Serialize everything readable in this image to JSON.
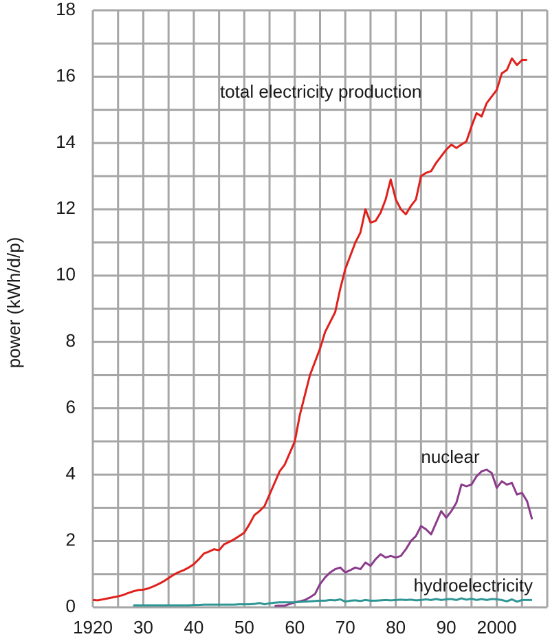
{
  "chart_data": {
    "type": "line",
    "y_label": "power (kWh/d/p)",
    "x": [
      1920,
      1921,
      1922,
      1923,
      1924,
      1925,
      1926,
      1927,
      1928,
      1929,
      1930,
      1931,
      1932,
      1933,
      1934,
      1935,
      1936,
      1937,
      1938,
      1939,
      1940,
      1941,
      1942,
      1943,
      1944,
      1945,
      1946,
      1947,
      1948,
      1949,
      1950,
      1951,
      1952,
      1953,
      1954,
      1955,
      1956,
      1957,
      1958,
      1959,
      1960,
      1961,
      1962,
      1963,
      1964,
      1965,
      1966,
      1967,
      1968,
      1969,
      1970,
      1971,
      1972,
      1973,
      1974,
      1975,
      1976,
      1977,
      1978,
      1979,
      1980,
      1981,
      1982,
      1983,
      1984,
      1985,
      1986,
      1987,
      1988,
      1989,
      1990,
      1991,
      1992,
      1993,
      1994,
      1995,
      1996,
      1997,
      1998,
      1999,
      2000,
      2001,
      2002,
      2003,
      2004,
      2005,
      2006,
      2007
    ],
    "series": [
      {
        "name": "total electricity production",
        "color": "#e0201b",
        "values": [
          0.22,
          0.21,
          0.24,
          0.27,
          0.3,
          0.33,
          0.37,
          0.43,
          0.48,
          0.52,
          0.53,
          0.57,
          0.63,
          0.7,
          0.78,
          0.88,
          0.98,
          1.06,
          1.12,
          1.2,
          1.3,
          1.45,
          1.62,
          1.68,
          1.75,
          1.72,
          1.9,
          1.97,
          2.05,
          2.15,
          2.25,
          2.5,
          2.78,
          2.9,
          3.05,
          3.4,
          3.75,
          4.1,
          4.3,
          4.65,
          5.0,
          5.8,
          6.4,
          7.0,
          7.4,
          7.8,
          8.3,
          8.6,
          8.9,
          9.6,
          10.2,
          10.6,
          11.0,
          11.3,
          12.0,
          11.6,
          11.65,
          11.9,
          12.3,
          12.9,
          12.3,
          12.0,
          11.85,
          12.1,
          12.3,
          13.0,
          13.1,
          13.15,
          13.4,
          13.6,
          13.8,
          13.95,
          13.85,
          13.95,
          14.05,
          14.5,
          14.9,
          14.8,
          15.2,
          15.4,
          15.6,
          16.1,
          16.2,
          16.55,
          16.35,
          16.5,
          16.5,
          null
        ]
      },
      {
        "name": "nuclear",
        "color": "#8b3b8b",
        "values": [
          null,
          null,
          null,
          null,
          null,
          null,
          null,
          null,
          null,
          null,
          null,
          null,
          null,
          null,
          null,
          null,
          null,
          null,
          null,
          null,
          null,
          null,
          null,
          null,
          null,
          null,
          null,
          null,
          null,
          null,
          null,
          null,
          null,
          null,
          null,
          null,
          0.04,
          0.05,
          0.05,
          0.1,
          0.15,
          0.18,
          0.22,
          0.3,
          0.4,
          0.7,
          0.9,
          1.05,
          1.15,
          1.2,
          1.05,
          1.12,
          1.2,
          1.15,
          1.35,
          1.25,
          1.45,
          1.6,
          1.5,
          1.55,
          1.5,
          1.55,
          1.75,
          2.0,
          2.15,
          2.45,
          2.35,
          2.2,
          2.55,
          2.9,
          2.7,
          2.9,
          3.15,
          3.7,
          3.65,
          3.7,
          3.95,
          4.1,
          4.15,
          4.05,
          3.6,
          3.8,
          3.7,
          3.75,
          3.4,
          3.45,
          3.2,
          2.65
        ]
      },
      {
        "name": "hydroelectricity",
        "color": "#2e9595",
        "values": [
          null,
          null,
          null,
          null,
          null,
          null,
          null,
          null,
          0.06,
          0.06,
          0.06,
          0.06,
          0.06,
          0.06,
          0.06,
          0.06,
          0.06,
          0.06,
          0.06,
          0.06,
          0.07,
          0.07,
          0.08,
          0.08,
          0.08,
          0.08,
          0.08,
          0.08,
          0.08,
          0.09,
          0.09,
          0.09,
          0.1,
          0.13,
          0.09,
          0.12,
          0.14,
          0.15,
          0.15,
          0.15,
          0.15,
          0.16,
          0.17,
          0.18,
          0.19,
          0.2,
          0.2,
          0.22,
          0.21,
          0.24,
          0.17,
          0.2,
          0.21,
          0.19,
          0.22,
          0.2,
          0.2,
          0.21,
          0.22,
          0.21,
          0.22,
          0.23,
          0.22,
          0.23,
          0.21,
          0.22,
          0.24,
          0.22,
          0.25,
          0.22,
          0.24,
          0.25,
          0.22,
          0.27,
          0.23,
          0.26,
          0.22,
          0.25,
          0.22,
          0.25,
          0.24,
          0.22,
          0.18,
          0.24,
          0.17,
          0.22,
          0.22,
          0.22
        ]
      }
    ],
    "xlim": [
      1920,
      2010
    ],
    "xticks": [
      1920,
      {
        "value": 1930,
        "label": "30"
      },
      {
        "value": 1940,
        "label": "40"
      },
      {
        "value": 1950,
        "label": "50"
      },
      {
        "value": 1960,
        "label": "60"
      },
      {
        "value": 1970,
        "label": "70"
      },
      {
        "value": 1980,
        "label": "80"
      },
      {
        "value": 1990,
        "label": "90"
      },
      2000
    ],
    "x_gridlines": [
      1920,
      1925,
      1930,
      1935,
      1940,
      1945,
      1950,
      1955,
      1960,
      1965,
      1970,
      1975,
      1980,
      1985,
      1990,
      1995,
      2000,
      2005,
      2010
    ],
    "ylim": [
      0,
      18
    ],
    "yticks": [
      0,
      2,
      4,
      6,
      8,
      10,
      12,
      14,
      16,
      18
    ],
    "y_gridlines": [
      0,
      1,
      2,
      3,
      4,
      5,
      6,
      7,
      8,
      9,
      10,
      11,
      12,
      13,
      14,
      15,
      16,
      17,
      18
    ],
    "grid": true
  }
}
